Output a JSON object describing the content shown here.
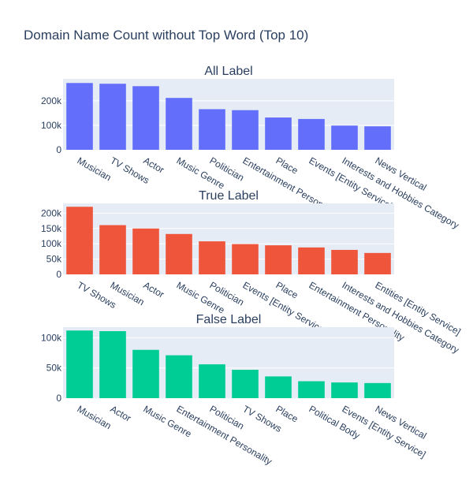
{
  "chart_data": {
    "title": "Domain Name Count without Top Word (Top 10)",
    "charts": [
      {
        "type": "bar",
        "title": "All Label",
        "color": "#636efa",
        "categories": [
          "Musician",
          "TV Shows",
          "Actor",
          "Music Genre",
          "Politician",
          "Entertainment Personality",
          "Place",
          "Events [Entity Service]",
          "Interests and Hobbies Category",
          "News Vertical"
        ],
        "values": [
          273000,
          270000,
          260000,
          212000,
          166000,
          162000,
          132000,
          126000,
          99000,
          96000
        ],
        "ylim": [
          0,
          290000
        ],
        "yticks": [
          0,
          100000,
          200000
        ],
        "ytick_labels": [
          "0",
          "100k",
          "200k"
        ]
      },
      {
        "type": "bar",
        "title": "True Label",
        "color": "#ef553b",
        "categories": [
          "TV Shows",
          "Musician",
          "Actor",
          "Music Genre",
          "Politician",
          "Events [Entity Service]",
          "Place",
          "Entertainment Personality",
          "Interests and Hobbies Category",
          "Entities [Entity Service]"
        ],
        "values": [
          221000,
          161000,
          150000,
          132000,
          108000,
          99000,
          95000,
          88000,
          80000,
          70000
        ],
        "ylim": [
          0,
          232000
        ],
        "yticks": [
          0,
          50000,
          100000,
          150000,
          200000
        ],
        "ytick_labels": [
          "0",
          "50k",
          "100k",
          "150k",
          "200k"
        ]
      },
      {
        "type": "bar",
        "title": "False Label",
        "color": "#00cc96",
        "categories": [
          "Musician",
          "Actor",
          "Music Genre",
          "Entertainment Personality",
          "Politician",
          "TV Shows",
          "Place",
          "Political Body",
          "Events [Entity Service]",
          "News Vertical"
        ],
        "values": [
          112000,
          111000,
          80000,
          71000,
          56000,
          47000,
          36000,
          28000,
          26000,
          25000
        ],
        "ylim": [
          0,
          117500
        ],
        "yticks": [
          0,
          50000,
          100000
        ],
        "ytick_labels": [
          "0",
          "50k",
          "100k"
        ]
      }
    ]
  }
}
